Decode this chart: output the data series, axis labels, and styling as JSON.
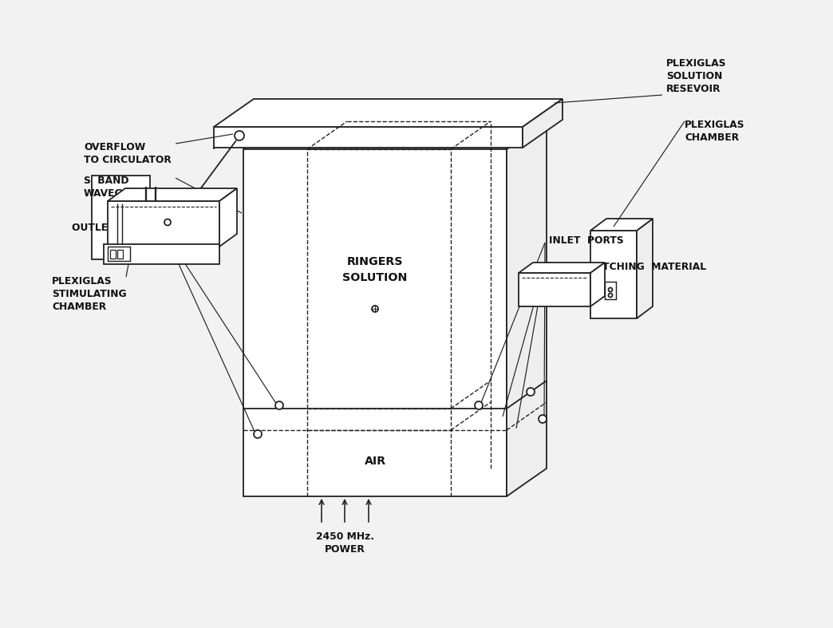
{
  "bg_color": "#f2f2f2",
  "line_color": "#222222",
  "lw": 1.3,
  "labels": {
    "plexiglas_reservoir": "PLEXIGLAS\nSOLUTION\nRESEVOIR",
    "overflow": "OVERFLOW\nTO CIRCULATOR",
    "s_band": "S  BAND\nWAVEGUIDE",
    "outlet_ports": "OUTLET  PORTS",
    "plexiglas_stim": "PLEXIGLAS\nSTIMULATING\nCHAMBER",
    "ringers": "RINGERS\nSOLUTION",
    "air": "AIR",
    "inlet_ports": "INLET  PORTS",
    "matching": "1/4 λ   MATCHING  MATERIAL",
    "plexiglas_chamber": "PLEXIGLAS\nCHAMBER",
    "power": "2450 MHz.\nPOWER"
  }
}
